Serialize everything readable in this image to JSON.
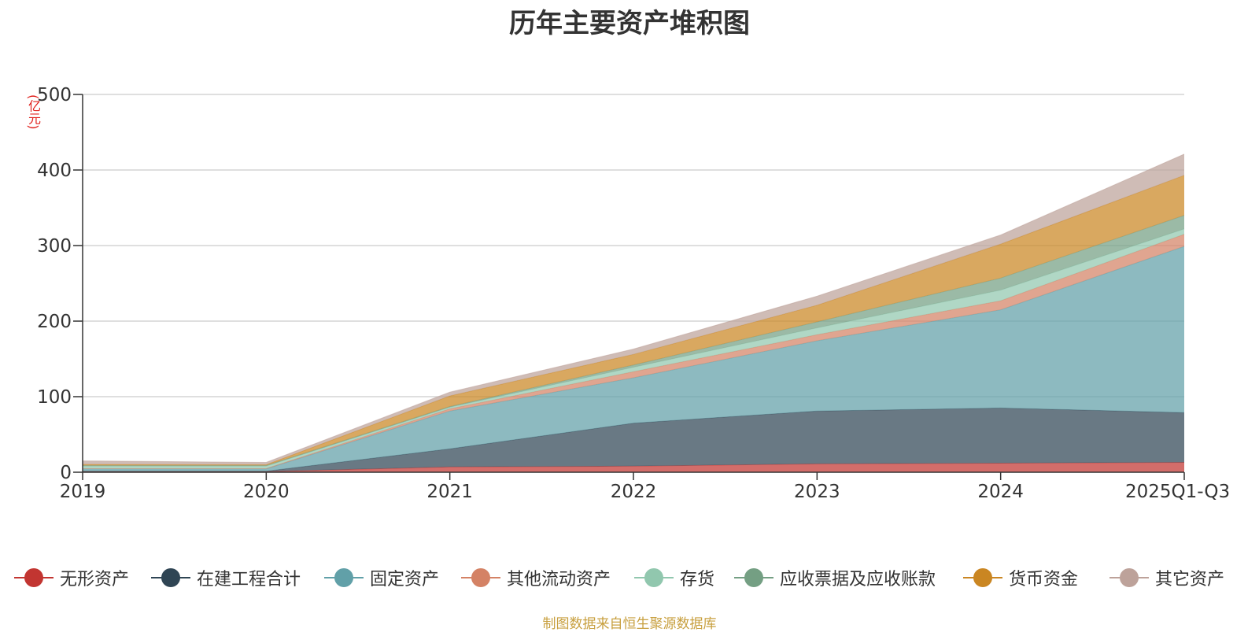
{
  "chart_data": {
    "type": "area",
    "stacked": true,
    "title": "历年主要资产堆积图",
    "unit": "(亿元)",
    "categories": [
      "2019",
      "2020",
      "2021",
      "2022",
      "2023",
      "2024",
      "2025Q1-Q3"
    ],
    "ylim": [
      0,
      500
    ],
    "yticks": [
      0,
      100,
      200,
      300,
      400,
      500
    ],
    "grid": true,
    "legend_position": "bottom",
    "series": [
      {
        "name": "无形资产",
        "color": "#c23531",
        "line_color": "#c23531",
        "values": [
          1,
          1,
          7,
          8,
          11,
          12,
          13
        ]
      },
      {
        "name": "在建工程合计",
        "color": "#2f4554",
        "line_color": "#2f4554",
        "values": [
          0.5,
          0.5,
          24,
          57,
          70,
          73,
          66
        ]
      },
      {
        "name": "固定资产",
        "color": "#61a0a8",
        "line_color": "#61a0a8",
        "values": [
          3,
          3,
          50,
          60,
          93,
          130,
          220
        ]
      },
      {
        "name": "其他流动资产",
        "color": "#d48265",
        "line_color": "#d48265",
        "values": [
          0.5,
          0.5,
          3,
          8,
          8,
          12,
          16
        ]
      },
      {
        "name": "存货",
        "color": "#91c7ae",
        "line_color": "#91c7ae",
        "values": [
          3,
          3,
          2,
          6,
          9,
          14,
          7
        ]
      },
      {
        "name": "应收票据及应收账款",
        "color": "#749f83",
        "line_color": "#749f83",
        "values": [
          1,
          1,
          1,
          3,
          8,
          16,
          18
        ]
      },
      {
        "name": "货币资金",
        "color": "#ca8622",
        "line_color": "#ca8622",
        "values": [
          1.5,
          1,
          14,
          14,
          22,
          45,
          53
        ]
      },
      {
        "name": "其它资产",
        "color": "#bda29a",
        "line_color": "#bda29a",
        "values": [
          4.5,
          3,
          5,
          7,
          12,
          12,
          28
        ]
      }
    ]
  },
  "source_note": "制图数据来自恒生聚源数据库"
}
